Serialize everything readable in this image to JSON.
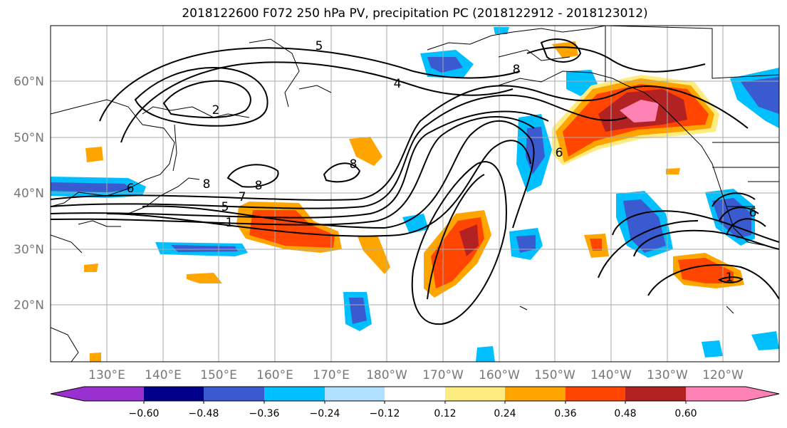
{
  "title": "2018122600 F072 250 hPa PV, precipitation PC (2018122912 - 2018123012)",
  "lat_ticks": [
    "60°N",
    "50°N",
    "40°N",
    "30°N",
    "20°N"
  ],
  "lon_ticks": [
    "130°E",
    "140°E",
    "150°E",
    "160°E",
    "170°E",
    "180°W",
    "170°W",
    "160°W",
    "150°W",
    "140°W",
    "130°W",
    "120°W"
  ],
  "pv_contour_labels": [
    "5",
    "2",
    "4",
    "8",
    "8",
    "8",
    "6",
    "7",
    "5",
    "1",
    "8",
    "6",
    "6",
    "1"
  ],
  "colorbar": {
    "labels": [
      "−0.60",
      "−0.48",
      "−0.36",
      "−0.24",
      "−0.12",
      "0.12",
      "0.24",
      "0.36",
      "0.48",
      "0.60"
    ],
    "colors": [
      "#9b30d0",
      "#00008b",
      "#3a5bd0",
      "#00bfff",
      "#b0e0ff",
      "#ffffff",
      "#ffec80",
      "#ffa500",
      "#ff4500",
      "#b22222",
      "#ff82b4"
    ]
  }
}
